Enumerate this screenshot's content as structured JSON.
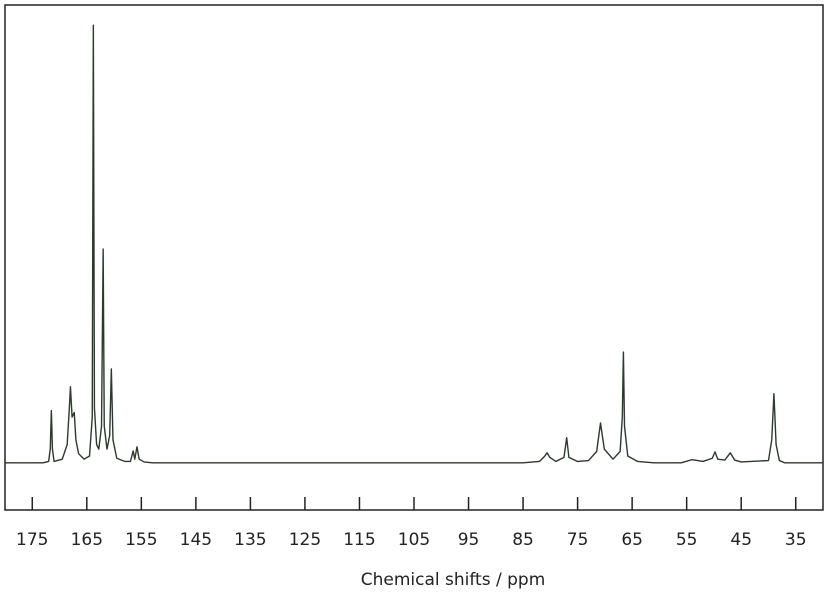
{
  "chart_data": {
    "type": "line",
    "xlabel": "Chemical shifts / ppm",
    "x": [
      180,
      173,
      172,
      171.7,
      171.5,
      171.3,
      171,
      169.5,
      168.6,
      168.2,
      168,
      167.7,
      167.3,
      167,
      166.5,
      165.5,
      164.5,
      164,
      163.8,
      163.6,
      163.2,
      162.8,
      162.3,
      162,
      161.8,
      161.3,
      160.8,
      160.5,
      160.2,
      159.5,
      158,
      157,
      156.5,
      156.2,
      155.8,
      155.4,
      154.5,
      153,
      85,
      82,
      81,
      80.6,
      80.1,
      79,
      77.5,
      77,
      76.6,
      75,
      73,
      71.5,
      70.8,
      70.1,
      68.5,
      67.2,
      66.8,
      66.6,
      66.4,
      65.8,
      64,
      61,
      56,
      54,
      52,
      50.3,
      49.8,
      49.3,
      48,
      47,
      46.2,
      45,
      40,
      39.4,
      39,
      38.6,
      38,
      37,
      30
    ],
    "series": [
      {
        "color": "#2b3a2b",
        "values": [
          0,
          0,
          0.3,
          3,
          11.4,
          3,
          0.3,
          0.8,
          4,
          12,
          16.6,
          10,
          11,
          5,
          2,
          0.8,
          1.5,
          10,
          95.6,
          12,
          4,
          3,
          8,
          46.7,
          8,
          3,
          6,
          20.5,
          5,
          1,
          0.3,
          0.3,
          2.6,
          0.8,
          3.5,
          0.8,
          0.2,
          0,
          0,
          0.3,
          1.5,
          2.2,
          1.2,
          0.3,
          1.2,
          5.5,
          1.2,
          0.3,
          0.5,
          2.5,
          8.7,
          3,
          0.8,
          2.5,
          10,
          24.2,
          8,
          1.5,
          0.3,
          0,
          0,
          0.7,
          0.3,
          1,
          2.4,
          0.8,
          0.6,
          2.2,
          0.6,
          0.2,
          0.5,
          5,
          15.1,
          4,
          0.5,
          0,
          0
        ]
      }
    ],
    "xlim": [
      180,
      30
    ],
    "ylim": [
      -10.3,
      100
    ],
    "xticks": [
      175,
      165,
      155,
      145,
      135,
      125,
      115,
      105,
      95,
      85,
      75,
      65,
      55,
      45,
      35
    ],
    "grid": false
  }
}
